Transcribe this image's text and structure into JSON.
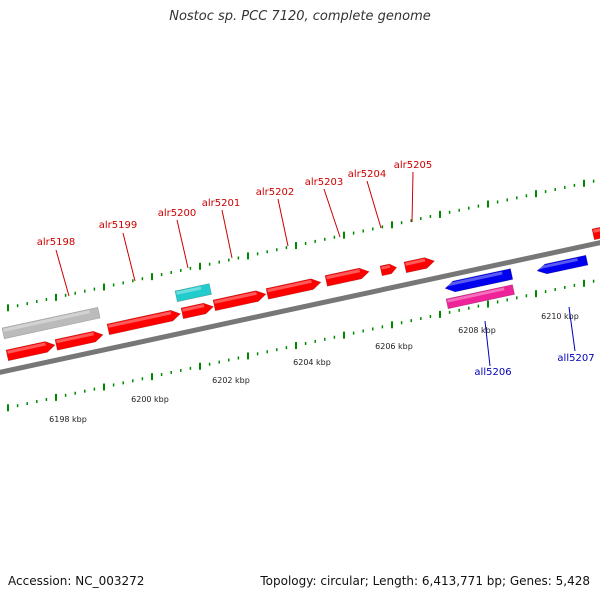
{
  "header": {
    "title": "Nostoc sp. PCC 7120, complete genome"
  },
  "footer": {
    "accession": "Accession: NC_003272",
    "stats": "Topology: circular; Length: 6,413,771 bp; Genes: 5,428"
  },
  "colors": {
    "forward": "#ff0000",
    "reverse": "#0000ee",
    "cyan": "#22cccc",
    "magenta": "#ee2299",
    "gray": "#bbbbbb",
    "backbone": "#777777",
    "tick": "#008800",
    "label_forward": "#cc0000",
    "label_reverse": "#0000bb"
  },
  "scale": {
    "tick_labels": [
      "6198 kbp",
      "6200 kbp",
      "6202 kbp",
      "6204 kbp",
      "6206 kbp",
      "6208 kbp",
      "6210 kbp"
    ]
  },
  "genes": {
    "forward": [
      "alr5198",
      "alr5199",
      "alr5200",
      "alr5201",
      "alr5202",
      "alr5203",
      "alr5204",
      "alr5205"
    ],
    "reverse": [
      "all5206",
      "all5207"
    ]
  }
}
